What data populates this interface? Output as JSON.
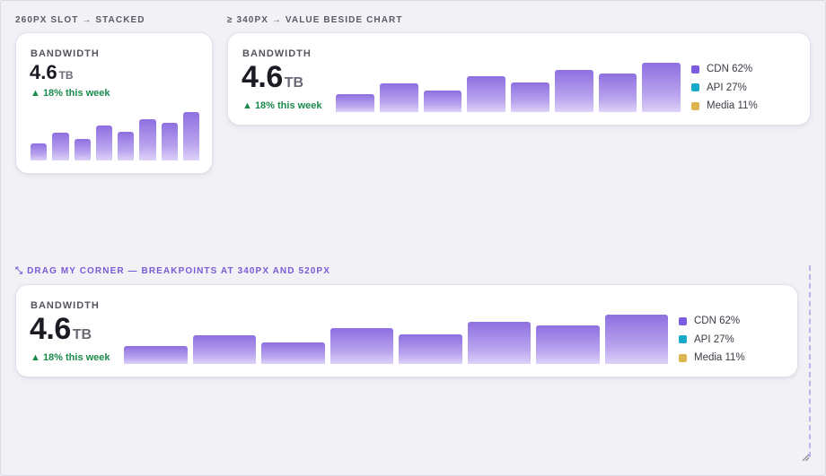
{
  "sections": {
    "stacked_label": "260PX SLOT → STACKED",
    "beside_label": "≥ 340PX → VALUE BESIDE CHART",
    "drag_label": "DRAG MY CORNER — BREAKPOINTS AT 340PX AND 520PX",
    "drag_icon": "resize-diagonal-icon"
  },
  "colors": {
    "accent": "#7a5bd6",
    "trend_up": "#1b8a4b",
    "cdn": "#7c5ce0",
    "api": "#19a9c9",
    "media": "#dcb450"
  },
  "cards": {
    "stacked": {
      "label": "BANDWIDTH",
      "value": "4.6",
      "unit": "TB",
      "trend": "▲ 18% this week"
    },
    "beside": {
      "label": "BANDWIDTH",
      "value": "4.6",
      "unit": "TB",
      "trend": "▲ 18% this week",
      "legend": [
        {
          "label": "CDN 62%",
          "color": "#7c5ce0"
        },
        {
          "label": "API 27%",
          "color": "#19a9c9"
        },
        {
          "label": "Media 11%",
          "color": "#dcb450"
        }
      ]
    },
    "resizable": {
      "label": "BANDWIDTH",
      "value": "4.6",
      "unit": "TB",
      "trend": "▲ 18% this week",
      "legend": [
        {
          "label": "CDN 62%",
          "color": "#7c5ce0"
        },
        {
          "label": "API 27%",
          "color": "#19a9c9"
        },
        {
          "label": "Media 11%",
          "color": "#dcb450"
        }
      ]
    }
  },
  "chart_data": {
    "type": "bar",
    "categories": [
      "",
      "",
      "",
      "",
      "",
      "",
      "",
      ""
    ],
    "values": [
      0.36,
      0.58,
      0.44,
      0.72,
      0.6,
      0.86,
      0.78,
      1.0
    ],
    "ylim": [
      0,
      1
    ],
    "grid": false,
    "title": "",
    "xlabel": "",
    "ylabel": ""
  }
}
